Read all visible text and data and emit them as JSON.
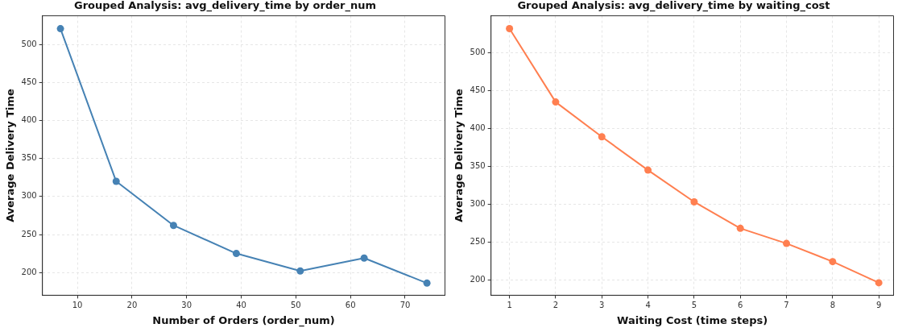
{
  "chart_data": [
    {
      "type": "line",
      "title": "Grouped Analysis: avg_delivery_time by order_num",
      "xlabel": "Number of Orders (order_num)",
      "ylabel": "Average Delivery Time",
      "x": [
        6.9,
        17.1,
        27.6,
        39.1,
        50.8,
        62.5,
        74.0
      ],
      "series": [
        {
          "color": "#4682b4",
          "values": [
            521,
            320,
            262,
            225,
            202,
            219,
            186
          ]
        }
      ],
      "xlim": [
        3.6,
        77.3
      ],
      "ylim": [
        170,
        538
      ],
      "xticks": [
        10,
        20,
        30,
        40,
        50,
        60,
        70
      ],
      "yticks": [
        200,
        250,
        300,
        350,
        400,
        450,
        500
      ],
      "grid": true,
      "marker": "circle",
      "line_style": "solid"
    },
    {
      "type": "line",
      "title": "Grouped Analysis: avg_delivery_time by waiting_cost",
      "xlabel": "Waiting Cost (time steps)",
      "ylabel": "Average Delivery Time",
      "x": [
        1,
        2,
        3,
        4,
        5,
        6,
        7,
        8,
        9
      ],
      "series": [
        {
          "color": "#ff7f50",
          "values": [
            532,
            435,
            389,
            345,
            303,
            268,
            248,
            224,
            196
          ]
        }
      ],
      "xlim": [
        0.6,
        9.32
      ],
      "ylim": [
        179.5,
        549
      ],
      "xticks": [
        1,
        2,
        3,
        4,
        5,
        6,
        7,
        8,
        9
      ],
      "yticks": [
        200,
        250,
        300,
        350,
        400,
        450,
        500
      ],
      "grid": true,
      "marker": "circle",
      "line_style": "solid"
    }
  ]
}
